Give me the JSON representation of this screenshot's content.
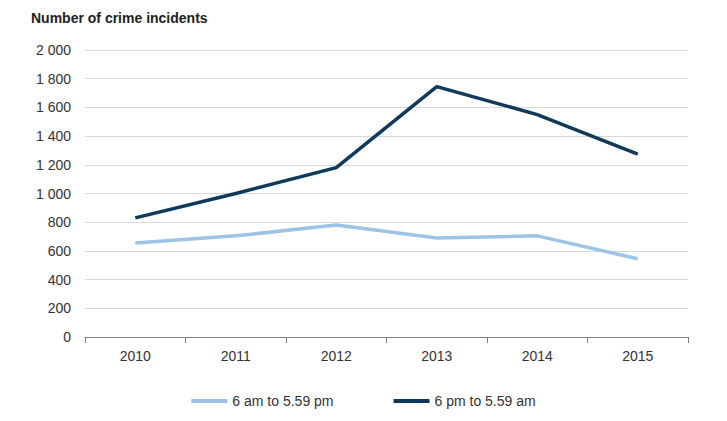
{
  "chart_data": {
    "type": "line",
    "ylabel": "Number of crime incidents",
    "categories": [
      "2010",
      "2011",
      "2012",
      "2013",
      "2014",
      "2015"
    ],
    "series": [
      {
        "name": "6 am to 5.59 pm",
        "color": "#9dc3e6",
        "values": [
          655,
          705,
          780,
          690,
          705,
          545
        ]
      },
      {
        "name": "6 pm to 5.59 am",
        "color": "#0e3a5c",
        "values": [
          830,
          1000,
          1180,
          1745,
          1550,
          1275
        ]
      }
    ],
    "ylim": [
      0,
      2000
    ],
    "yticks": [
      0,
      200,
      400,
      600,
      800,
      {
        "value": 1000,
        "label": "1 000"
      },
      {
        "value": 1200,
        "label": "1 200"
      },
      {
        "value": 1400,
        "label": "1 400"
      },
      {
        "value": 1600,
        "label": "1 600"
      },
      {
        "value": 1800,
        "label": "1 800"
      },
      {
        "value": 2000,
        "label": "2 000"
      }
    ],
    "grid": true,
    "legend": "bottom"
  }
}
